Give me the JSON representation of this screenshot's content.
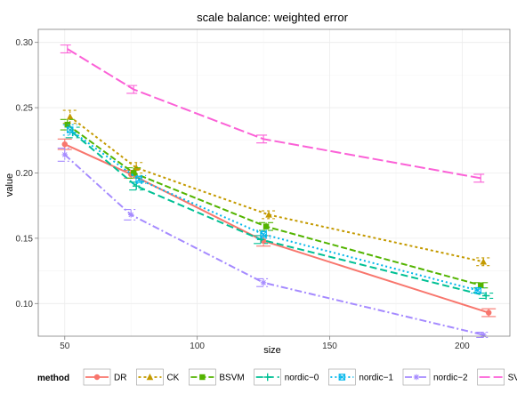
{
  "chart_data": {
    "type": "line",
    "title": "scale balance: weighted error",
    "xlabel": "size",
    "ylabel": "value",
    "xlim": [
      40,
      218
    ],
    "ylim": [
      0.075,
      0.31
    ],
    "xticks": [
      50,
      100,
      150,
      200
    ],
    "yticks": [
      0.1,
      0.15,
      0.2,
      0.25,
      0.3
    ],
    "ytick_labels": [
      "0.10",
      "0.15",
      "0.20",
      "0.25",
      "0.30"
    ],
    "grid": true,
    "legend_title": "method",
    "legend_position": "bottom",
    "series": [
      {
        "name": "DR",
        "color": "#F8766D",
        "dash": "",
        "marker": "circle",
        "x": [
          50,
          75,
          125,
          210
        ],
        "y": [
          0.222,
          0.199,
          0.148,
          0.093
        ],
        "err": [
          0.004,
          0.003,
          0.004,
          0.003
        ]
      },
      {
        "name": "CK",
        "color": "#C49A00",
        "dash": "3,3",
        "marker": "triangle",
        "x": [
          52,
          77,
          127,
          208
        ],
        "y": [
          0.243,
          0.204,
          0.168,
          0.132
        ],
        "err": [
          0.005,
          0.004,
          0.003,
          0.003
        ]
      },
      {
        "name": "BSVM",
        "color": "#53B400",
        "dash": "7,3",
        "marker": "square",
        "x": [
          51,
          76,
          126,
          207
        ],
        "y": [
          0.237,
          0.2,
          0.159,
          0.114
        ],
        "err": [
          0.004,
          0.004,
          0.003,
          0.002
        ]
      },
      {
        "name": "nordic−0",
        "color": "#00C094",
        "dash": "8,4",
        "marker": "plus",
        "x": [
          53,
          77,
          124,
          209
        ],
        "y": [
          0.231,
          0.19,
          0.149,
          0.106
        ],
        "err": [
          0.004,
          0.003,
          0.003,
          0.002
        ]
      },
      {
        "name": "nordic−1",
        "color": "#00B6EB",
        "dash": "2,3",
        "marker": "boxcross",
        "x": [
          52,
          78,
          125,
          206
        ],
        "y": [
          0.233,
          0.195,
          0.153,
          0.11
        ],
        "err": [
          0.004,
          0.003,
          0.003,
          0.002
        ]
      },
      {
        "name": "nordic−2",
        "color": "#A58AFF",
        "dash": "8,3,2,3",
        "marker": "asterisk",
        "x": [
          50,
          75,
          125,
          208
        ],
        "y": [
          0.214,
          0.168,
          0.116,
          0.076
        ],
        "err": [
          0.005,
          0.004,
          0.003,
          0.002
        ]
      },
      {
        "name": "SVR",
        "color": "#FB61D7",
        "dash": "12,4",
        "marker": "none",
        "x": [
          51,
          76,
          125,
          207
        ],
        "y": [
          0.295,
          0.264,
          0.226,
          0.196
        ],
        "err": [
          0.003,
          0.003,
          0.003,
          0.003
        ]
      }
    ]
  }
}
